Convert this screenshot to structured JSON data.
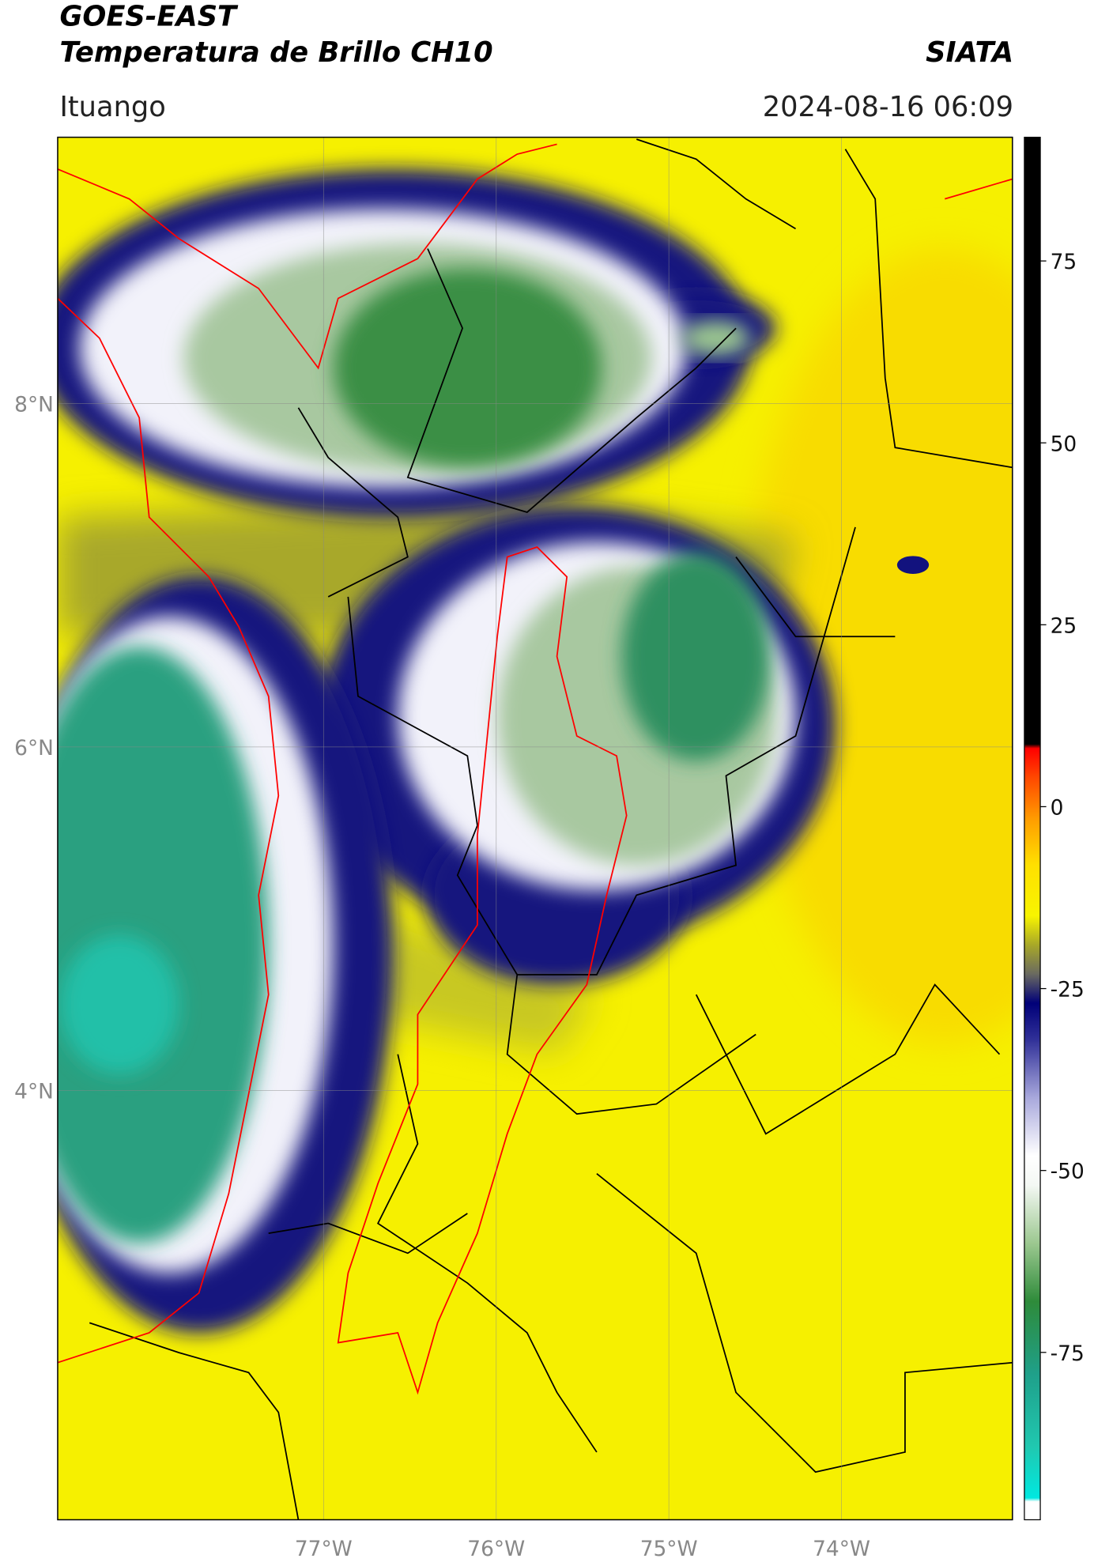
{
  "header": {
    "title": "GOES-EAST",
    "subtitle": "Temperatura de Brillo CH10",
    "brand": "SIATA",
    "location": "Ituango",
    "datetime": "2024-08-16 06:09"
  },
  "map": {
    "xlim": [
      -78.54,
      -73.01
    ],
    "ylim": [
      1.5,
      9.55
    ],
    "xticks": [
      {
        "value": -77,
        "label": "77°W"
      },
      {
        "value": -76,
        "label": "76°W"
      },
      {
        "value": -75,
        "label": "75°W"
      },
      {
        "value": -74,
        "label": "74°W"
      }
    ],
    "yticks": [
      {
        "value": 8,
        "label": "8°N"
      },
      {
        "value": 6,
        "label": "6°N"
      },
      {
        "value": 4,
        "label": "4°N"
      }
    ],
    "grid": true
  },
  "colorbar": {
    "lim": [
      -98,
      92
    ],
    "ticks": [
      75,
      50,
      25,
      0,
      -25,
      -50,
      -75
    ],
    "colormap": [
      {
        "value": -98,
        "color": "#ffffff"
      },
      {
        "value": -95.5,
        "color": "#ffffff"
      },
      {
        "value": -95,
        "color": "#00e8e0"
      },
      {
        "value": -88,
        "color": "#20c8b0"
      },
      {
        "value": -78,
        "color": "#1fa08a"
      },
      {
        "value": -68,
        "color": "#2e8b3a"
      },
      {
        "value": -60,
        "color": "#9cc890"
      },
      {
        "value": -52,
        "color": "#f4f8f4"
      },
      {
        "value": -48,
        "color": "#ffffff"
      },
      {
        "value": -40,
        "color": "#a8a8dc"
      },
      {
        "value": -32,
        "color": "#303098"
      },
      {
        "value": -27,
        "color": "#000078"
      },
      {
        "value": -23,
        "color": "#6a6a60"
      },
      {
        "value": -19,
        "color": "#a8a828"
      },
      {
        "value": -15,
        "color": "#f8f400"
      },
      {
        "value": -8,
        "color": "#ffe000"
      },
      {
        "value": -2,
        "color": "#ffa000"
      },
      {
        "value": 4,
        "color": "#ff4800"
      },
      {
        "value": 8,
        "color": "#ff0000"
      },
      {
        "value": 8.6,
        "color": "#000000"
      },
      {
        "value": 92,
        "color": "#000000"
      }
    ]
  }
}
